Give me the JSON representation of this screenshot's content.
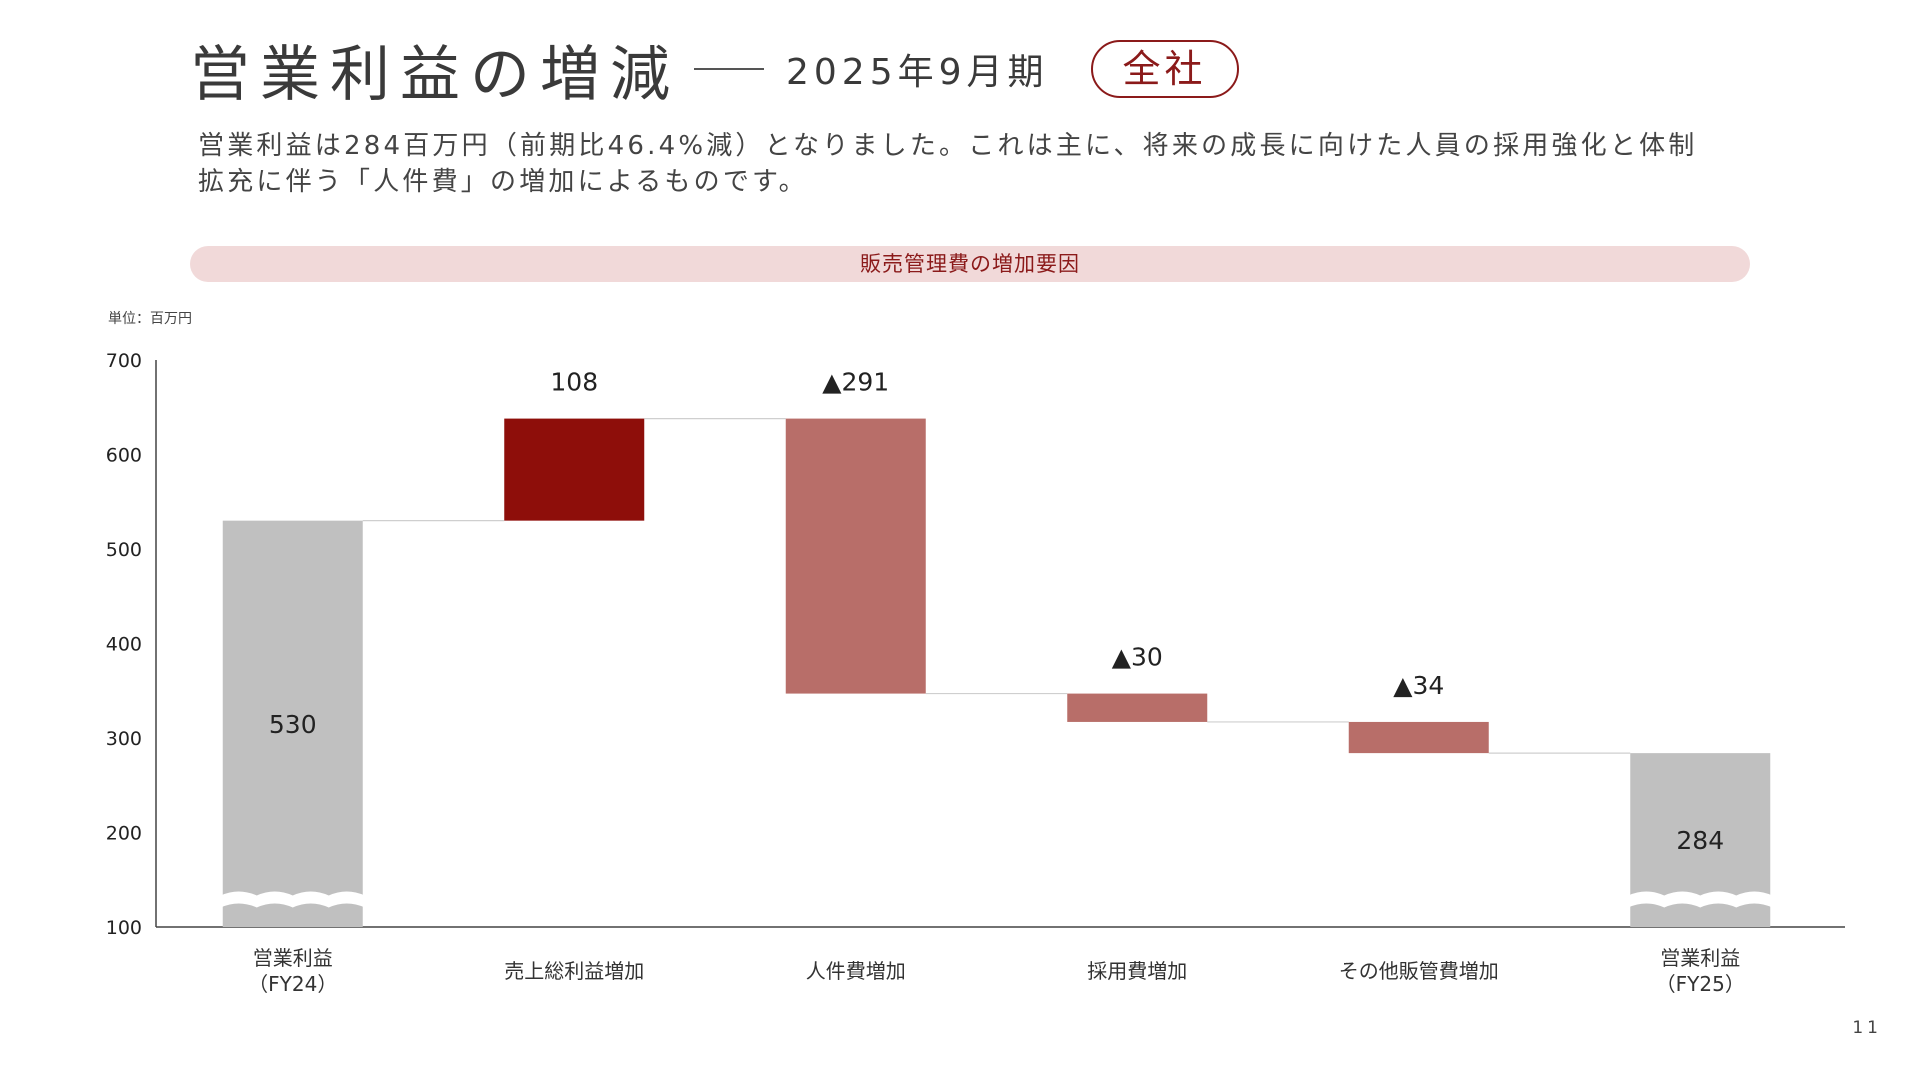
{
  "header": {
    "title": "営業利益の増減",
    "period": "2025年9月期",
    "badge": "全社"
  },
  "description": "営業利益は284百万円（前期比46.4%減）となりました。これは主に、将来の成長に向けた人員の採用強化と体制拡充に伴う「人件費」の増加によるものです。",
  "banner": "販売管理費の増加要因",
  "unit_label": "単位：百万円",
  "page_number": "11",
  "colors": {
    "total": "#c0c0c0",
    "increase": "#8e0e0a",
    "decrease": "#b86e69",
    "accent": "#8b1a1a"
  },
  "chart_data": {
    "type": "waterfall",
    "ylim": [
      100,
      700
    ],
    "yticks": [
      100,
      200,
      300,
      400,
      500,
      600,
      700
    ],
    "axis_break": true,
    "bars": [
      {
        "category": [
          "営業利益",
          "（FY24）"
        ],
        "kind": "total",
        "start": 100,
        "end": 530,
        "label": "530",
        "label_pos": "inside"
      },
      {
        "category": [
          "売上総利益増加"
        ],
        "kind": "increase",
        "start": 530,
        "end": 638,
        "label": "108",
        "label_pos": "above"
      },
      {
        "category": [
          "人件費増加"
        ],
        "kind": "decrease",
        "start": 638,
        "end": 347,
        "label": "▲291",
        "label_pos": "above"
      },
      {
        "category": [
          "採用費増加"
        ],
        "kind": "decrease",
        "start": 347,
        "end": 317,
        "label": "▲30",
        "label_pos": "above"
      },
      {
        "category": [
          "その他販管費増加"
        ],
        "kind": "decrease",
        "start": 317,
        "end": 284,
        "label": "▲34",
        "label_pos": "above"
      },
      {
        "category": [
          "営業利益",
          "（FY25）"
        ],
        "kind": "total",
        "start": 100,
        "end": 284,
        "label": "284",
        "label_pos": "inside"
      }
    ]
  }
}
